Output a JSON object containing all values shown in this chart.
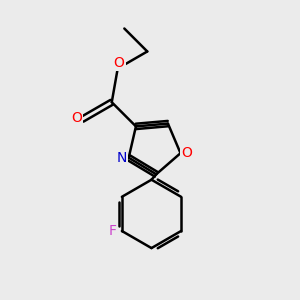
{
  "background_color": "#ebebeb",
  "bond_color": "#000000",
  "bond_width": 1.8,
  "atom_colors": {
    "O": "#ff0000",
    "N": "#0000cc",
    "F": "#cc44cc",
    "C": "#000000"
  },
  "font_size": 10,
  "fig_width": 3.0,
  "fig_height": 3.0,
  "dpi": 100
}
